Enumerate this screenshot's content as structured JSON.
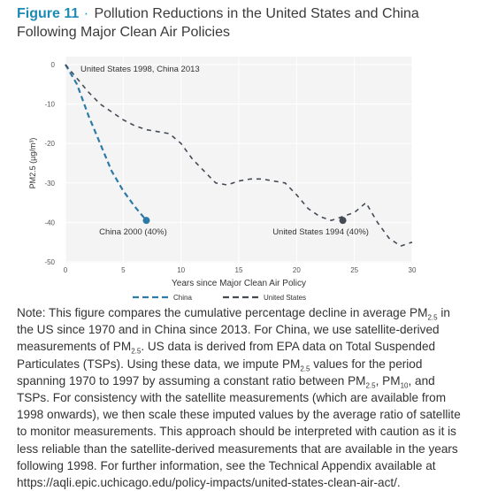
{
  "title": {
    "figure_label": "Figure 11",
    "separator": "·",
    "text": "Pollution Reductions in the United States and China Following Major Clean Air Policies"
  },
  "chart_data": {
    "type": "line",
    "xlabel": "Years since Major Clean Air Policy",
    "ylabel": "PM2.5 (µg/m³)",
    "xlim": [
      0,
      30
    ],
    "ylim": [
      -50,
      0
    ],
    "xticks": [
      0,
      5,
      10,
      15,
      20,
      25,
      30
    ],
    "yticks": [
      0,
      -10,
      -20,
      -30,
      -40,
      -50
    ],
    "grid": true,
    "legend_position": "bottom",
    "series": [
      {
        "name": "China",
        "color": "#2d7aa8",
        "x": [
          0,
          1,
          2,
          3,
          4,
          5,
          6,
          7
        ],
        "y": [
          0,
          -5,
          -13,
          -20,
          -27,
          -32,
          -36,
          -39.5
        ]
      },
      {
        "name": "United States",
        "color": "#444b55",
        "x": [
          0,
          1,
          2,
          3,
          4,
          5,
          6,
          7,
          8,
          9,
          10,
          11,
          12,
          13,
          14,
          15,
          16,
          17,
          18,
          19,
          20,
          21,
          22,
          23,
          24,
          25,
          26,
          27,
          28,
          29,
          30
        ],
        "y": [
          0,
          -3.5,
          -7,
          -10,
          -12,
          -14,
          -15.5,
          -16.5,
          -17,
          -17.5,
          -20,
          -24,
          -27,
          -30,
          -30.5,
          -29.5,
          -29,
          -29,
          -29.5,
          -30,
          -33,
          -36.5,
          -38.5,
          -39.5,
          -38.5,
          -37.5,
          -35,
          -40,
          -44,
          -46,
          -45
        ]
      }
    ],
    "annotations": [
      {
        "text": "United States 1998, China 2013"
      },
      {
        "text": "China 2000 (40%)"
      },
      {
        "text": "United States 1994 (40%)"
      }
    ],
    "end_markers": [
      {
        "series": "China",
        "x": 7,
        "y": -39.5
      },
      {
        "series": "United States",
        "x": 24,
        "y": -39.5
      }
    ]
  },
  "legend": {
    "china": "China",
    "us": "United States"
  },
  "note": {
    "p1": "Note: This figure compares the cumulative percentage decline in average PM",
    "sub1": "2.5",
    "p2": " in the US since 1970 and in China since 2013. For China, we use satellite-derived measurements of PM",
    "sub2": "2.5",
    "p3": ". US data is derived from EPA data on Total Suspended Particulates (TSPs). Using these data, we impute PM",
    "sub3": "2.5",
    "p4": " values for the period spanning 1970 to 1997 by assuming a constant ratio between PM",
    "sub4": "2.5",
    "p5": ", PM",
    "sub5": "10",
    "p6": ", and TSPs. For consistency with the satellite measurements (which are available from 1998 onwards), we then scale these imputed values by the average ratio of satellite to monitor measurements. This approach should be interpreted with caution as it is less reliable than the satellite-derived measurements that are available in the years following 1998. For further information, see the Technical Appendix available at https://aqli.epic.uchicago.edu/policy-impacts/united-states-clean-air-act/."
  }
}
